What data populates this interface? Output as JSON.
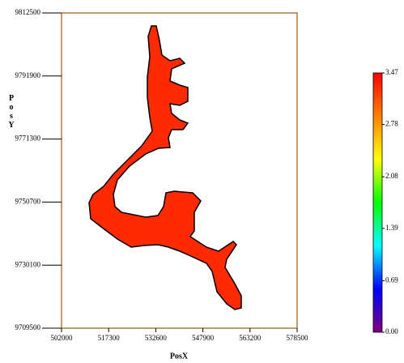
{
  "chart_data": {
    "type": "map",
    "xlabel": "PosX",
    "ylabel": "PosY",
    "xlim": [
      502000,
      578500
    ],
    "xticks": [
      502000,
      517300,
      532600,
      547900,
      563200,
      578500
    ],
    "ylim": [
      9709500,
      9812500
    ],
    "yticks": [
      9709500,
      9730100,
      9750700,
      9771300,
      9791900,
      9812500
    ],
    "region_color": "#ff2a00",
    "frame_color": "#b07a3a",
    "colorbar": {
      "clim": [
        0,
        3.47
      ],
      "ticks": [
        {
          "value": 0,
          "label": "0.00"
        },
        0.69,
        1.39,
        2.08,
        2.78,
        3.47
      ],
      "colors": [
        "#800080",
        "#0000ff",
        "#00ffff",
        "#00ff00",
        "#ffff00",
        "#ff8000",
        "#ff0000"
      ]
    }
  }
}
